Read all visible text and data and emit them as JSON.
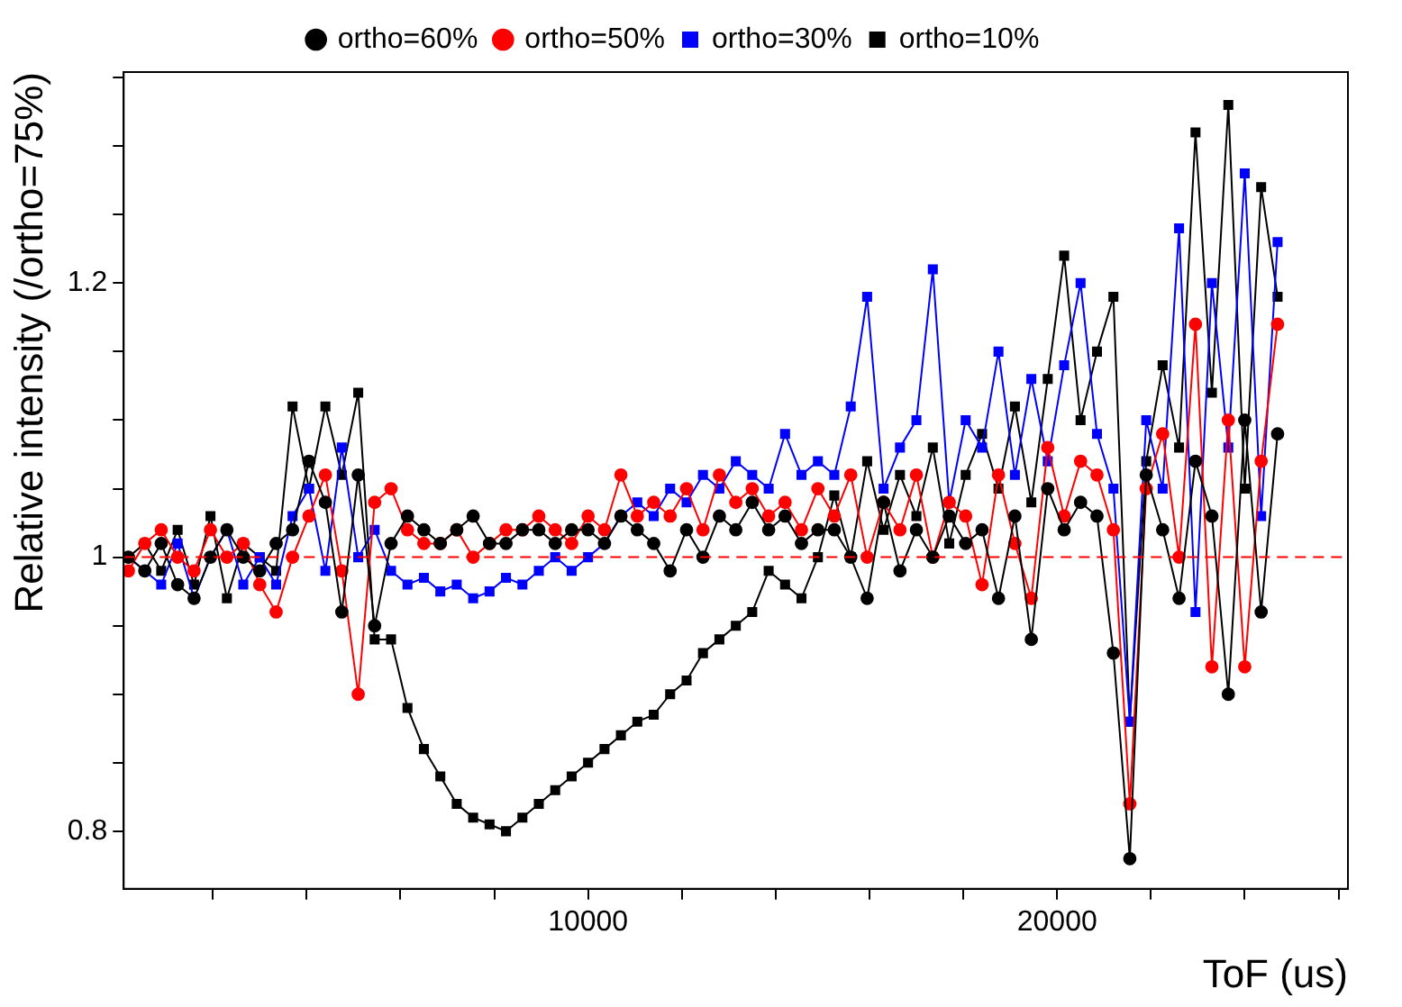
{
  "chart_data": {
    "type": "line",
    "xlabel": "ToF (us)",
    "ylabel": "Relative intensity (/ortho=75%)",
    "x": [
      200,
      550,
      900,
      1250,
      1600,
      1950,
      2300,
      2650,
      3000,
      3350,
      3700,
      4050,
      4400,
      4750,
      5100,
      5450,
      5800,
      6150,
      6500,
      6850,
      7200,
      7550,
      7900,
      8250,
      8600,
      8950,
      9300,
      9650,
      10000,
      10350,
      10700,
      11050,
      11400,
      11750,
      12100,
      12450,
      12800,
      13150,
      13500,
      13850,
      14200,
      14550,
      14900,
      15250,
      15600,
      15950,
      16300,
      16650,
      17000,
      17350,
      17700,
      18050,
      18400,
      18750,
      19100,
      19450,
      19800,
      20150,
      20500,
      20850,
      21200,
      21550,
      21900,
      22250,
      22600,
      22950,
      23300,
      23650,
      24000,
      24350,
      24700
    ],
    "series": [
      {
        "name": "ortho=60%",
        "color": "#000000",
        "marker": "circle",
        "values": [
          1.0,
          0.99,
          1.01,
          0.98,
          0.97,
          1.0,
          1.02,
          1.0,
          0.99,
          1.01,
          1.02,
          1.07,
          1.04,
          0.96,
          1.06,
          0.95,
          1.01,
          1.03,
          1.02,
          1.01,
          1.02,
          1.03,
          1.01,
          1.01,
          1.02,
          1.02,
          1.01,
          1.02,
          1.02,
          1.01,
          1.03,
          1.02,
          1.01,
          0.99,
          1.02,
          1.0,
          1.03,
          1.02,
          1.04,
          1.02,
          1.03,
          1.01,
          1.02,
          1.02,
          1.0,
          0.97,
          1.04,
          0.99,
          1.02,
          1.0,
          1.03,
          1.01,
          1.02,
          0.97,
          1.03,
          0.94,
          1.05,
          1.02,
          1.04,
          1.03,
          0.93,
          0.78,
          1.06,
          1.02,
          0.97,
          1.07,
          1.03,
          0.9,
          1.1,
          0.96,
          1.09
        ]
      },
      {
        "name": "ortho=50%",
        "color": "#ff0000",
        "marker": "circle",
        "values": [
          0.99,
          1.01,
          1.02,
          1.0,
          0.99,
          1.02,
          1.0,
          1.01,
          0.98,
          0.96,
          1.0,
          1.03,
          1.06,
          0.99,
          0.9,
          1.04,
          1.05,
          1.02,
          1.01,
          1.01,
          1.02,
          1.0,
          1.01,
          1.02,
          1.02,
          1.03,
          1.02,
          1.01,
          1.03,
          1.02,
          1.06,
          1.03,
          1.04,
          1.03,
          1.05,
          1.02,
          1.06,
          1.04,
          1.05,
          1.03,
          1.04,
          1.02,
          1.05,
          1.03,
          1.06,
          1.0,
          1.04,
          1.02,
          1.06,
          1.0,
          1.04,
          1.03,
          0.98,
          1.06,
          1.01,
          0.97,
          1.08,
          1.03,
          1.07,
          1.06,
          1.02,
          0.82,
          1.05,
          1.09,
          1.0,
          1.17,
          0.92,
          1.1,
          0.92,
          1.07,
          1.17
        ]
      },
      {
        "name": "ortho=30%",
        "color": "#0000ff",
        "marker": "square",
        "values": [
          1.0,
          0.99,
          0.98,
          1.01,
          0.97,
          1.0,
          1.02,
          0.98,
          1.0,
          0.98,
          1.03,
          1.05,
          0.99,
          1.08,
          1.0,
          1.02,
          0.99,
          0.98,
          0.985,
          0.975,
          0.98,
          0.97,
          0.975,
          0.985,
          0.98,
          0.99,
          1.0,
          0.99,
          1.0,
          1.01,
          1.03,
          1.04,
          1.03,
          1.05,
          1.04,
          1.06,
          1.05,
          1.07,
          1.06,
          1.05,
          1.09,
          1.06,
          1.07,
          1.06,
          1.11,
          1.19,
          1.05,
          1.08,
          1.1,
          1.21,
          1.04,
          1.1,
          1.08,
          1.15,
          1.06,
          1.13,
          1.07,
          1.14,
          1.2,
          1.09,
          1.05,
          0.88,
          1.1,
          1.05,
          1.24,
          0.96,
          1.2,
          1.08,
          1.28,
          1.03,
          1.23
        ]
      },
      {
        "name": "ortho=10%",
        "color": "#000000",
        "marker": "square",
        "values": [
          1.0,
          1.01,
          0.99,
          1.02,
          0.98,
          1.03,
          0.97,
          1.01,
          1.0,
          0.99,
          1.11,
          1.05,
          1.11,
          1.06,
          1.12,
          0.94,
          0.94,
          0.89,
          0.86,
          0.84,
          0.82,
          0.81,
          0.805,
          0.8,
          0.81,
          0.82,
          0.83,
          0.84,
          0.85,
          0.86,
          0.87,
          0.88,
          0.885,
          0.9,
          0.91,
          0.93,
          0.94,
          0.95,
          0.96,
          0.99,
          0.98,
          0.97,
          1.0,
          1.045,
          1.0,
          1.07,
          1.02,
          1.06,
          1.03,
          1.08,
          1.01,
          1.06,
          1.09,
          1.05,
          1.11,
          1.04,
          1.13,
          1.22,
          1.1,
          1.15,
          1.19,
          0.88,
          1.07,
          1.14,
          1.08,
          1.31,
          1.12,
          1.33,
          1.05,
          1.27,
          1.19
        ]
      }
    ],
    "xlim": [
      100,
      26200
    ],
    "xticks": [
      {
        "value": 2000,
        "label": null
      },
      {
        "value": 4000,
        "label": null
      },
      {
        "value": 6000,
        "label": null
      },
      {
        "value": 8000,
        "label": null
      },
      10000,
      {
        "value": 12000,
        "label": null
      },
      {
        "value": 14000,
        "label": null
      },
      {
        "value": 16000,
        "label": null
      },
      {
        "value": 18000,
        "label": null
      },
      20000,
      {
        "value": 22000,
        "label": null
      },
      {
        "value": 24000,
        "label": null
      },
      {
        "value": 26000,
        "label": null
      }
    ],
    "ylim": [
      0.758,
      1.354
    ],
    "yticks": [
      0.8,
      {
        "value": 0.85,
        "label": null
      },
      {
        "value": 0.9,
        "label": null
      },
      {
        "value": 0.95,
        "label": null
      },
      1,
      {
        "value": 1.05,
        "label": null
      },
      {
        "value": 1.1,
        "label": null
      },
      {
        "value": 1.15,
        "label": null
      },
      1.2,
      {
        "value": 1.25,
        "label": null
      },
      {
        "value": 1.3,
        "label": null
      },
      {
        "value": 1.35,
        "label": null
      }
    ],
    "ref_lines": [
      {
        "axis": "y",
        "value": 1,
        "color": "#ff0000",
        "line_style": "dashed"
      }
    ],
    "grid": false,
    "legend": "top",
    "line_style": "solid"
  }
}
